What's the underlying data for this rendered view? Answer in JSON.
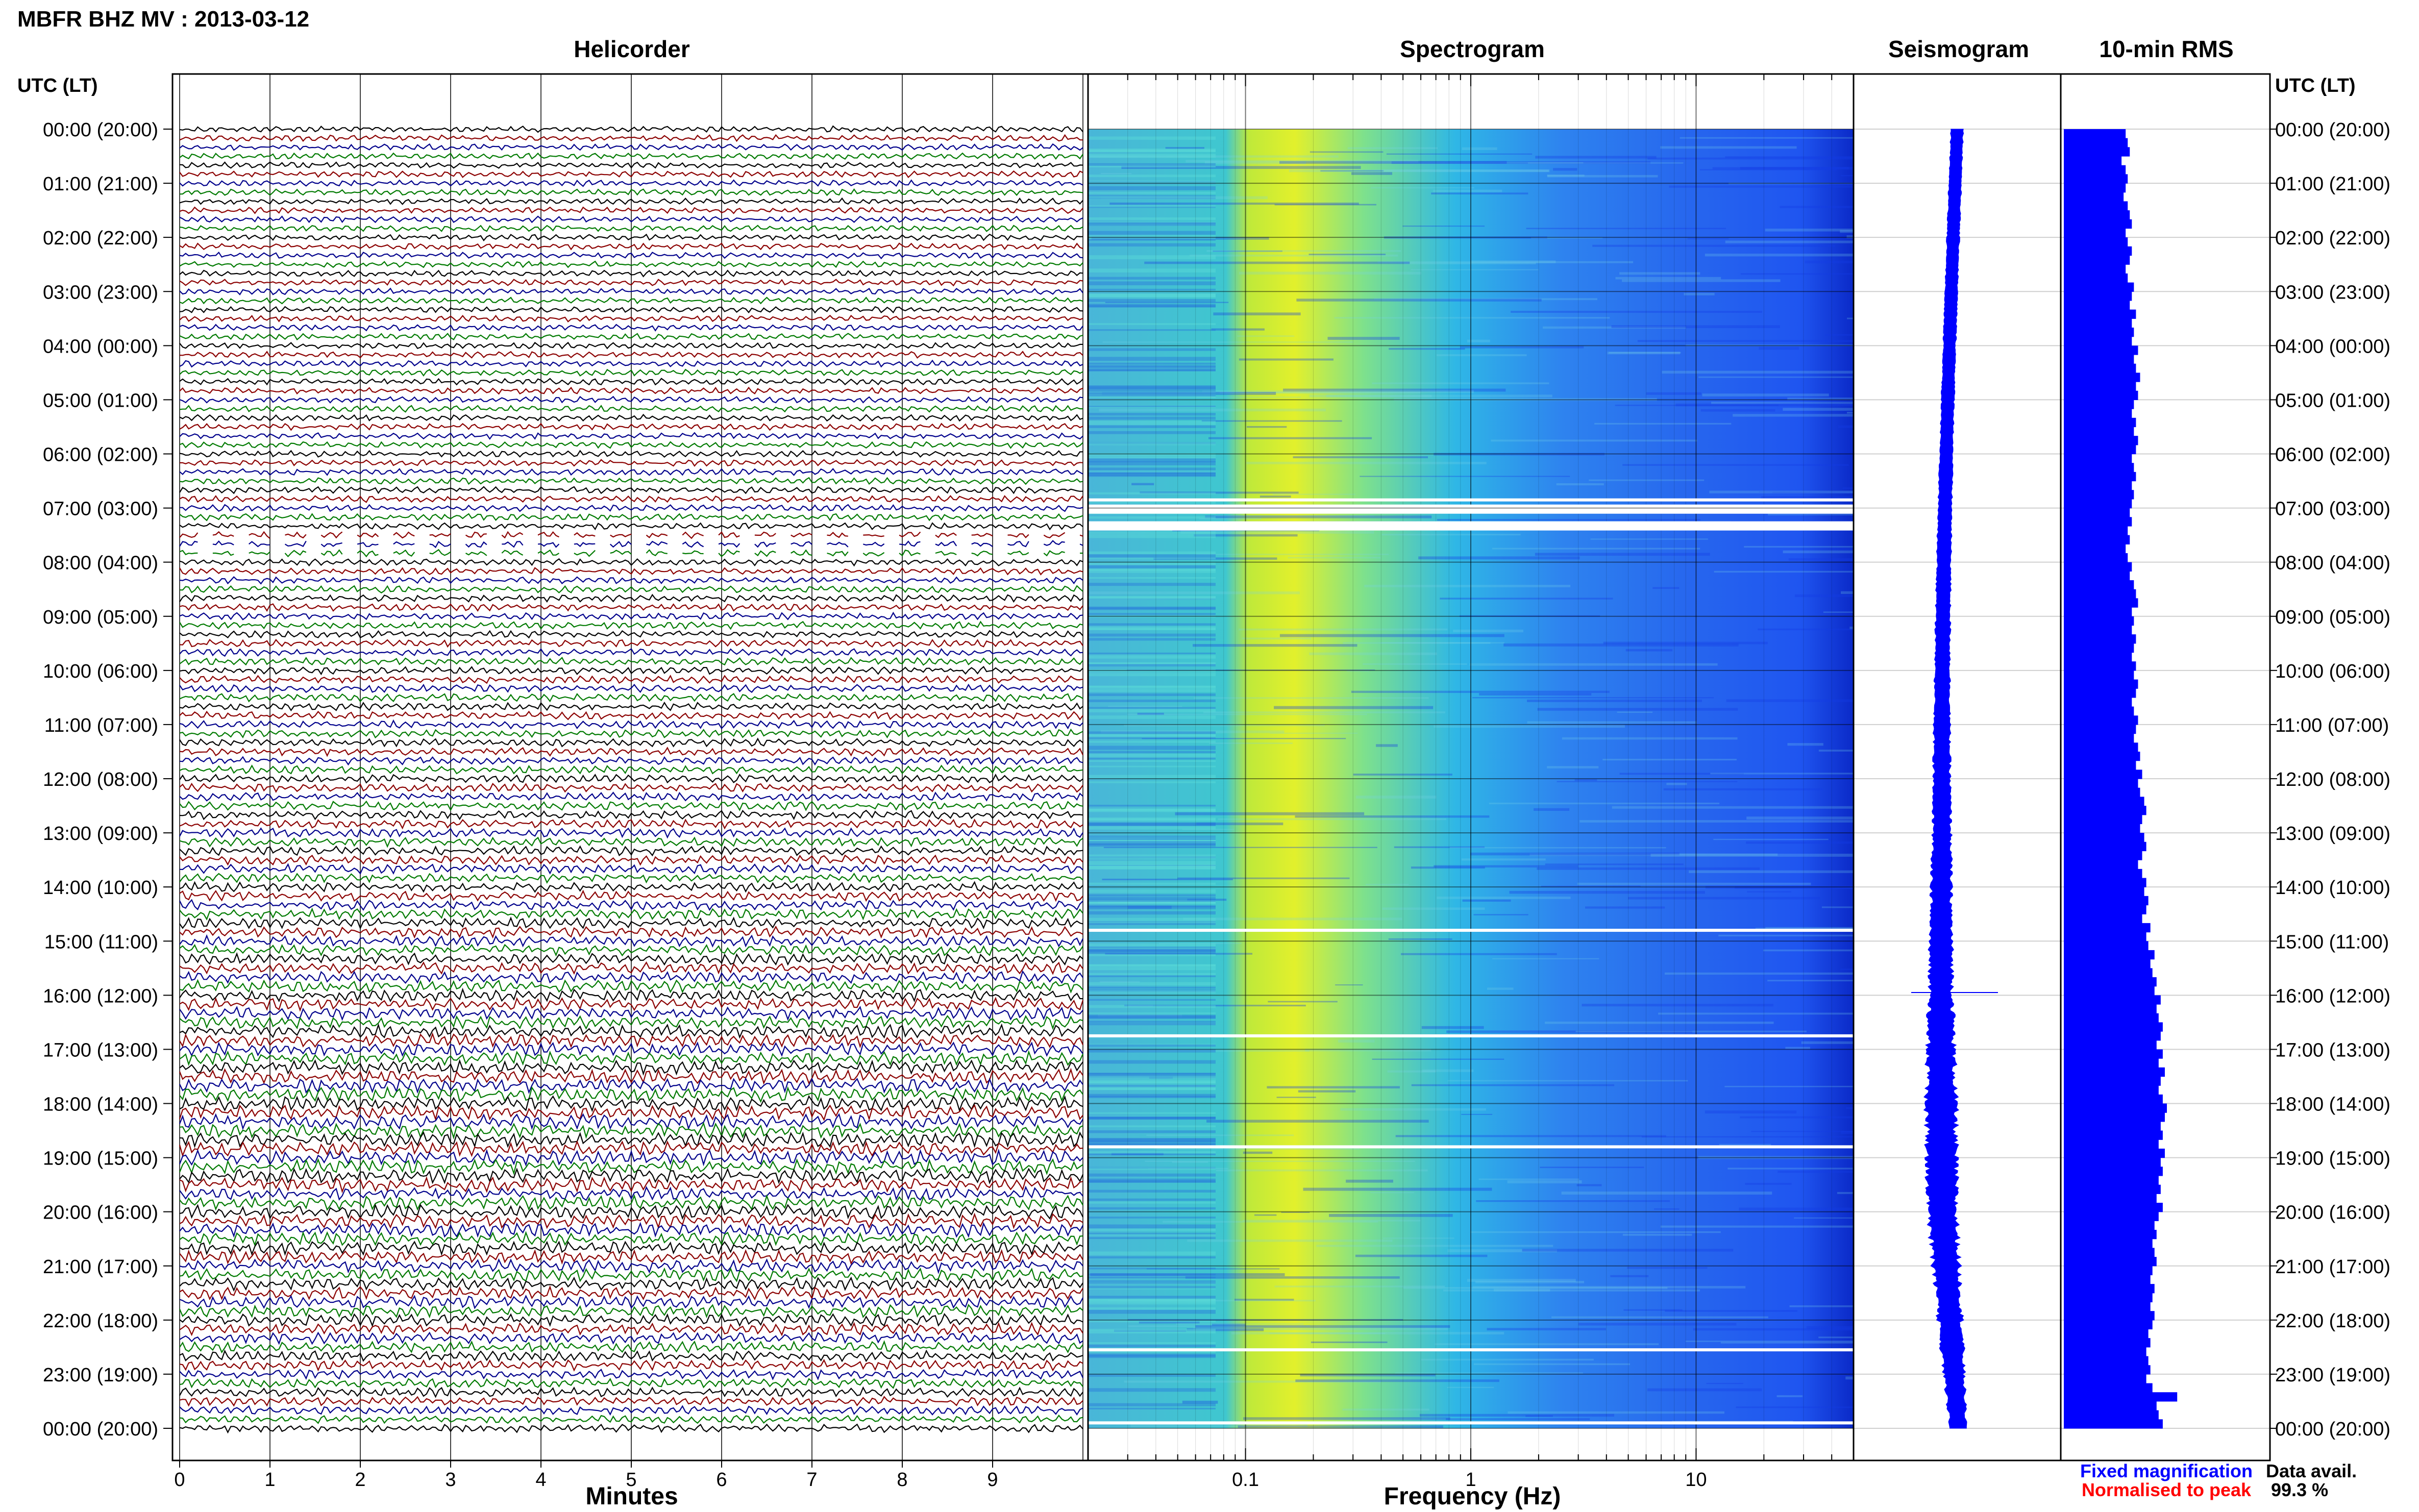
{
  "page_title": "MBFR BHZ MV : 2013-03-12",
  "colors": {
    "trace_cycle": [
      "#000000",
      "#8b0000",
      "#00008b",
      "#007a00"
    ],
    "rms_bar": "#0000ff",
    "seismogram": "#0000ff",
    "legend_fixed": "#0000ff",
    "legend_normalised": "#ff0000",
    "spectrogram_low": "#2f86f0",
    "spectrogram_mid": "#3bd9c8",
    "spectrogram_peak": "#d8ef2a",
    "spectrogram_high": "#0a2fd0"
  },
  "time_axis": {
    "left_header": "UTC (LT)",
    "right_header": "UTC (LT)",
    "labels": [
      "00:00 (20:00)",
      "01:00 (21:00)",
      "02:00 (22:00)",
      "03:00 (23:00)",
      "04:00 (00:00)",
      "05:00 (01:00)",
      "06:00 (02:00)",
      "07:00 (03:00)",
      "08:00 (04:00)",
      "09:00 (05:00)",
      "10:00 (06:00)",
      "11:00 (07:00)",
      "12:00 (08:00)",
      "13:00 (09:00)",
      "14:00 (10:00)",
      "15:00 (11:00)",
      "16:00 (12:00)",
      "17:00 (13:00)",
      "18:00 (14:00)",
      "19:00 (15:00)",
      "20:00 (16:00)",
      "21:00 (17:00)",
      "22:00 (18:00)",
      "23:00 (19:00)",
      "00:00 (20:00)"
    ]
  },
  "legend": {
    "fixed": "Fixed magnification",
    "normalised": "Normalised to peak",
    "avail_label": "Data avail.",
    "avail_value": "99.3 %"
  },
  "chart_data": [
    {
      "type": "line",
      "panel": "helicorder",
      "title": "Helicorder",
      "xlabel": "Minutes",
      "xlim": [
        0,
        10
      ],
      "xticks": [
        "0",
        "1",
        "2",
        "3",
        "4",
        "5",
        "6",
        "7",
        "8",
        "9"
      ],
      "rows_per_hour": 6,
      "row_minutes": 10,
      "hours": 24,
      "gap_rows": [
        45,
        46,
        47
      ]
    },
    {
      "type": "heatmap",
      "panel": "spectrogram",
      "title": "Spectrogram",
      "xlabel": "Frequency (Hz)",
      "xscale": "log",
      "xlim": [
        0.02,
        50
      ],
      "xticks": [
        {
          "value": 0.1,
          "label": "0.1"
        },
        {
          "value": 1,
          "label": "1"
        },
        {
          "value": 10,
          "label": "10"
        }
      ],
      "peak_band_hz": [
        0.15,
        0.4
      ],
      "gap_hours": [
        6.85,
        7.02,
        7.33,
        14.8,
        16.75,
        18.8,
        22.55,
        23.9
      ]
    },
    {
      "type": "line",
      "panel": "seismogram",
      "title": "Seismogram",
      "amplitude_envelope": [
        {
          "hour": 0,
          "amp": 0.08
        },
        {
          "hour": 3,
          "amp": 0.08
        },
        {
          "hour": 6,
          "amp": 0.09
        },
        {
          "hour": 9,
          "amp": 0.12
        },
        {
          "hour": 12,
          "amp": 0.16
        },
        {
          "hour": 14,
          "amp": 0.22
        },
        {
          "hour": 16,
          "amp": 0.3
        },
        {
          "hour": 18,
          "amp": 0.4
        },
        {
          "hour": 20,
          "amp": 0.38
        },
        {
          "hour": 22,
          "amp": 0.3
        },
        {
          "hour": 24,
          "amp": 0.15
        }
      ]
    },
    {
      "type": "bar",
      "panel": "rms",
      "title": "10-min RMS",
      "orientation": "horizontal",
      "xlim": [
        0,
        1
      ],
      "values": [
        0.3,
        0.31,
        0.32,
        0.28,
        0.3,
        0.31,
        0.3,
        0.29,
        0.31,
        0.32,
        0.33,
        0.3,
        0.31,
        0.33,
        0.32,
        0.3,
        0.31,
        0.34,
        0.33,
        0.32,
        0.35,
        0.33,
        0.34,
        0.33,
        0.36,
        0.34,
        0.35,
        0.37,
        0.35,
        0.36,
        0.34,
        0.33,
        0.35,
        0.34,
        0.36,
        0.35,
        0.33,
        0.34,
        0.35,
        0.33,
        0.34,
        0.33,
        0.32,
        0.33,
        0.31,
        0.32,
        0.3,
        0.31,
        0.33,
        0.32,
        0.34,
        0.35,
        0.36,
        0.33,
        0.34,
        0.33,
        0.35,
        0.34,
        0.33,
        0.35,
        0.34,
        0.36,
        0.35,
        0.33,
        0.34,
        0.36,
        0.35,
        0.34,
        0.36,
        0.37,
        0.35,
        0.38,
        0.36,
        0.37,
        0.39,
        0.4,
        0.38,
        0.37,
        0.39,
        0.4,
        0.38,
        0.36,
        0.38,
        0.4,
        0.39,
        0.41,
        0.4,
        0.38,
        0.42,
        0.4,
        0.41,
        0.44,
        0.42,
        0.43,
        0.45,
        0.44,
        0.47,
        0.45,
        0.46,
        0.48,
        0.47,
        0.45,
        0.48,
        0.46,
        0.49,
        0.47,
        0.46,
        0.48,
        0.5,
        0.49,
        0.47,
        0.48,
        0.46,
        0.49,
        0.47,
        0.48,
        0.46,
        0.47,
        0.45,
        0.48,
        0.46,
        0.44,
        0.45,
        0.43,
        0.44,
        0.45,
        0.43,
        0.42,
        0.44,
        0.43,
        0.42,
        0.44,
        0.43,
        0.41,
        0.42,
        0.4,
        0.41,
        0.42,
        0.4,
        0.43,
        0.55,
        0.45,
        0.46,
        0.48
      ]
    }
  ]
}
